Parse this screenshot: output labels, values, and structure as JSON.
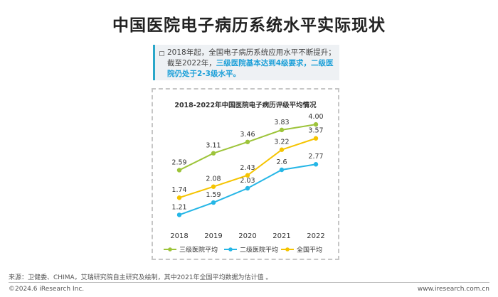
{
  "page": {
    "title": "中国医院电子病历系统水平实际现状"
  },
  "callout": {
    "line1": "2018年起，全国电子病历系统应用水平不断提升；",
    "line2_prefix": "截至2022年，",
    "line2_highlight": "三级医院基本达到4级要求，二级医院仍处于2-3级水平。"
  },
  "chart_data": {
    "type": "line",
    "title": "2018-2022年中国医院电子病历评级平均情况",
    "xlabel": "",
    "ylabel": "",
    "x": [
      "2018",
      "2019",
      "2020",
      "2021",
      "2022"
    ],
    "ylim": [
      1.0,
      4.2
    ],
    "grid": false,
    "legend_position": "bottom",
    "series": [
      {
        "name": "三级医院平均",
        "color": "#9dc43a",
        "values": [
          2.59,
          3.11,
          3.46,
          3.83,
          4.0
        ],
        "labels": [
          "2.59",
          "3.11",
          "3.46",
          "3.83",
          "4.00"
        ]
      },
      {
        "name": "二级医院平均",
        "color": "#25b6e6",
        "values": [
          1.21,
          1.59,
          2.03,
          2.6,
          2.77
        ],
        "labels": [
          "1.21",
          "1.59",
          "2.03",
          "2.6",
          "2.77"
        ]
      },
      {
        "name": "全国平均",
        "color": "#f5c400",
        "values": [
          1.74,
          2.08,
          2.43,
          3.22,
          3.57
        ],
        "labels": [
          "1.74",
          "2.08",
          "2.43",
          "3.22",
          "3.57"
        ]
      }
    ]
  },
  "footer": {
    "source": "来源：卫健委、CHIMA，艾瑞研究院自主研究及绘制，其中2021年全国平均数据为估计值 。",
    "copyright": "©2024.6 iResearch Inc.",
    "website": "www.iresearch.com.cn"
  }
}
